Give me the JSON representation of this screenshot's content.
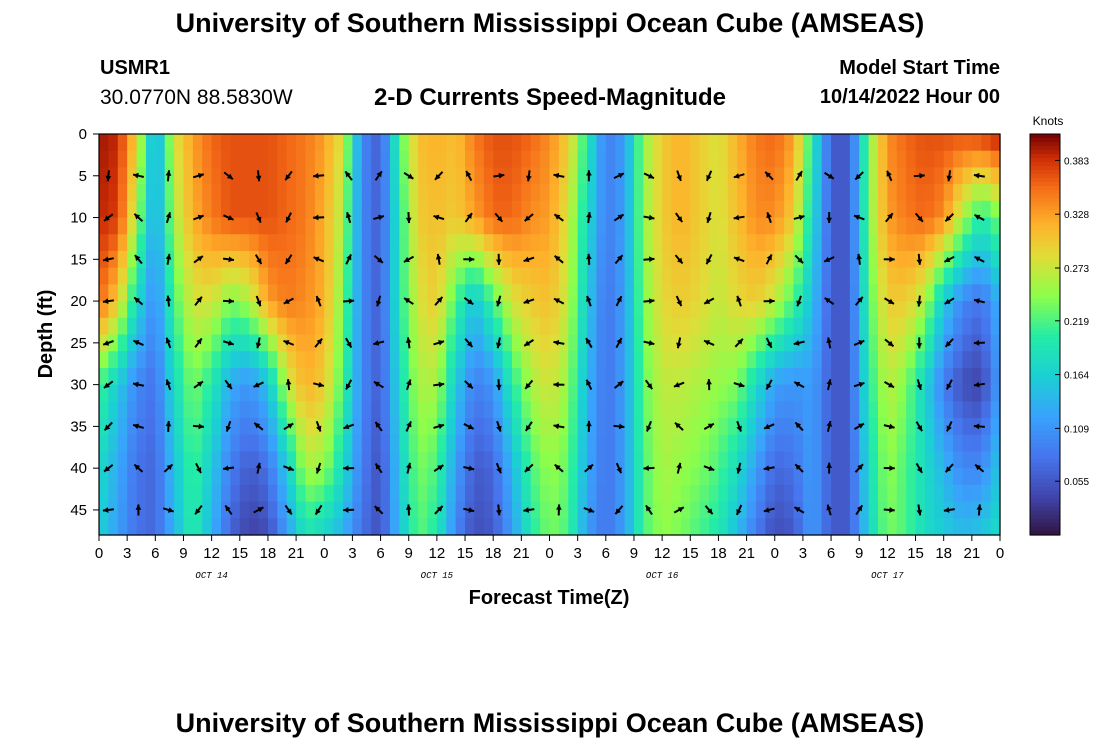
{
  "header": {
    "title": "University of Southern Mississippi Ocean Cube (AMSEAS)",
    "station_id": "USMR1",
    "coordinates": "30.0770N  88.5830W",
    "subtitle": "2-D Currents Speed-Magnitude",
    "model_start_label": "Model Start Time",
    "model_start_value": "10/14/2022 Hour 00"
  },
  "footer": {
    "title": "University of Southern Mississippi Ocean Cube (AMSEAS)"
  },
  "chart_data": {
    "type": "heatmap",
    "title": "2-D Currents Speed-Magnitude",
    "xlabel": "Forecast Time(Z)",
    "ylabel": "Depth (ft)",
    "xlim": [
      0,
      96
    ],
    "ylim": [
      48,
      0
    ],
    "x_ticks": [
      0,
      3,
      6,
      9,
      12,
      15,
      18,
      21,
      24,
      27,
      30,
      33,
      36,
      39,
      42,
      45,
      48,
      51,
      54,
      57,
      60,
      63,
      66,
      69,
      72,
      75,
      78,
      81,
      84,
      87,
      90,
      93,
      96
    ],
    "x_tick_labels": [
      "0",
      "3",
      "6",
      "9",
      "12",
      "15",
      "18",
      "21",
      "0",
      "3",
      "6",
      "9",
      "12",
      "15",
      "18",
      "21",
      "0",
      "3",
      "6",
      "9",
      "12",
      "15",
      "18",
      "21",
      "0",
      "3",
      "6",
      "9",
      "12",
      "15",
      "18",
      "21",
      "0"
    ],
    "y_ticks": [
      0,
      5,
      10,
      15,
      20,
      25,
      30,
      35,
      40,
      45
    ],
    "y_tick_labels": [
      "0",
      "5",
      "10",
      "15",
      "20",
      "25",
      "30",
      "35",
      "40",
      "45"
    ],
    "date_labels": [
      {
        "x": 12,
        "text": "OCT 14"
      },
      {
        "x": 36,
        "text": "OCT 15"
      },
      {
        "x": 60,
        "text": "OCT 16"
      },
      {
        "x": 84,
        "text": "OCT 17"
      }
    ],
    "colorbar": {
      "label": "Knots",
      "min": 0.0,
      "max": 0.41,
      "ticks": [
        0.383,
        0.328,
        0.273,
        0.219,
        0.164,
        0.109,
        0.055
      ],
      "tick_labels": [
        "0.383",
        "0.328",
        "0.273",
        "0.219",
        "0.164",
        "0.109",
        "0.055"
      ]
    },
    "speed_field": {
      "comment": "Approximate speed (knots) at selected depths vs forecast hour, estimated from the colour shading",
      "depths_ft": [
        0,
        10,
        20,
        30,
        40,
        47
      ],
      "hours": [
        0,
        2,
        4,
        6,
        8,
        10,
        12,
        14,
        16,
        18,
        20,
        22,
        24,
        26,
        28,
        30,
        32,
        34,
        36,
        38,
        40,
        42,
        44,
        46,
        48,
        50,
        52,
        54,
        56,
        58,
        60,
        62,
        64,
        66,
        68,
        70,
        72,
        74,
        76,
        78,
        80,
        82,
        84,
        86,
        88,
        90,
        92,
        94,
        96
      ],
      "rows": [
        [
          0.4,
          0.39,
          0.3,
          0.12,
          0.28,
          0.33,
          0.36,
          0.37,
          0.37,
          0.37,
          0.36,
          0.35,
          0.33,
          0.28,
          0.1,
          0.06,
          0.22,
          0.31,
          0.32,
          0.31,
          0.35,
          0.37,
          0.37,
          0.36,
          0.34,
          0.3,
          0.2,
          0.09,
          0.12,
          0.25,
          0.3,
          0.32,
          0.3,
          0.28,
          0.32,
          0.35,
          0.36,
          0.33,
          0.2,
          0.06,
          0.06,
          0.24,
          0.34,
          0.36,
          0.37,
          0.37,
          0.37,
          0.38,
          0.4
        ],
        [
          0.39,
          0.38,
          0.26,
          0.12,
          0.26,
          0.32,
          0.35,
          0.37,
          0.37,
          0.37,
          0.36,
          0.35,
          0.32,
          0.26,
          0.1,
          0.06,
          0.2,
          0.3,
          0.31,
          0.3,
          0.33,
          0.36,
          0.36,
          0.34,
          0.33,
          0.28,
          0.18,
          0.09,
          0.12,
          0.25,
          0.3,
          0.32,
          0.3,
          0.28,
          0.31,
          0.34,
          0.34,
          0.3,
          0.18,
          0.06,
          0.06,
          0.24,
          0.33,
          0.35,
          0.36,
          0.34,
          0.26,
          0.2,
          0.24
        ],
        [
          0.36,
          0.3,
          0.18,
          0.1,
          0.22,
          0.28,
          0.28,
          0.24,
          0.26,
          0.33,
          0.35,
          0.34,
          0.32,
          0.24,
          0.1,
          0.06,
          0.2,
          0.28,
          0.3,
          0.22,
          0.15,
          0.22,
          0.28,
          0.3,
          0.31,
          0.27,
          0.16,
          0.08,
          0.12,
          0.24,
          0.29,
          0.3,
          0.29,
          0.27,
          0.29,
          0.3,
          0.27,
          0.22,
          0.15,
          0.06,
          0.06,
          0.22,
          0.3,
          0.3,
          0.26,
          0.16,
          0.1,
          0.08,
          0.14
        ],
        [
          0.22,
          0.16,
          0.1,
          0.08,
          0.18,
          0.24,
          0.2,
          0.13,
          0.11,
          0.15,
          0.27,
          0.32,
          0.3,
          0.22,
          0.1,
          0.06,
          0.18,
          0.26,
          0.26,
          0.16,
          0.09,
          0.11,
          0.2,
          0.26,
          0.28,
          0.25,
          0.14,
          0.08,
          0.12,
          0.23,
          0.27,
          0.27,
          0.26,
          0.25,
          0.24,
          0.18,
          0.12,
          0.11,
          0.12,
          0.06,
          0.06,
          0.2,
          0.27,
          0.24,
          0.17,
          0.09,
          0.05,
          0.04,
          0.12
        ],
        [
          0.18,
          0.13,
          0.08,
          0.07,
          0.15,
          0.22,
          0.16,
          0.09,
          0.06,
          0.08,
          0.16,
          0.26,
          0.25,
          0.18,
          0.09,
          0.05,
          0.16,
          0.24,
          0.22,
          0.12,
          0.06,
          0.07,
          0.14,
          0.22,
          0.25,
          0.23,
          0.13,
          0.08,
          0.12,
          0.22,
          0.26,
          0.25,
          0.24,
          0.22,
          0.18,
          0.12,
          0.07,
          0.08,
          0.12,
          0.06,
          0.06,
          0.18,
          0.25,
          0.22,
          0.18,
          0.14,
          0.1,
          0.1,
          0.16
        ],
        [
          0.17,
          0.12,
          0.08,
          0.07,
          0.14,
          0.21,
          0.14,
          0.07,
          0.04,
          0.05,
          0.12,
          0.2,
          0.18,
          0.14,
          0.08,
          0.05,
          0.15,
          0.23,
          0.2,
          0.1,
          0.05,
          0.06,
          0.12,
          0.2,
          0.24,
          0.22,
          0.12,
          0.08,
          0.12,
          0.22,
          0.25,
          0.24,
          0.22,
          0.2,
          0.15,
          0.09,
          0.05,
          0.06,
          0.12,
          0.06,
          0.06,
          0.17,
          0.24,
          0.22,
          0.18,
          0.16,
          0.14,
          0.15,
          0.18
        ]
      ]
    }
  }
}
